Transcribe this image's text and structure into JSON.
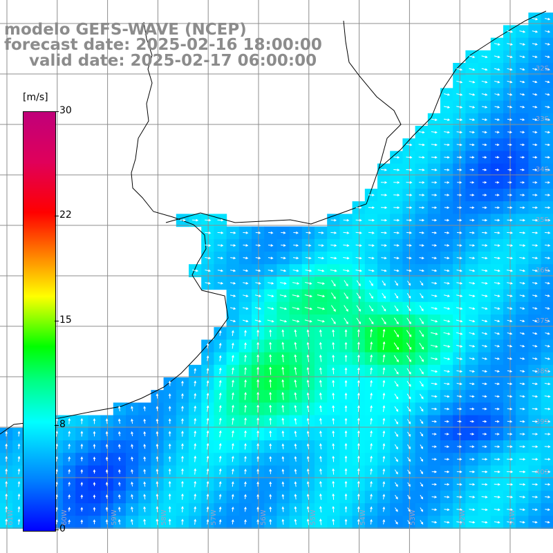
{
  "title": {
    "line1": "modelo GEFS-WAVE (NCEP)",
    "line2": "forecast date: 2025-02-16 18:00:00",
    "line3": "valid date: 2025-02-17 06:00:00"
  },
  "colorbar": {
    "unit": "[m/s]",
    "ticks": [
      "30",
      "22",
      "15",
      "8",
      "0"
    ],
    "min": 0,
    "max": 30,
    "colors": [
      "#0000ff",
      "#0080ff",
      "#00ffff",
      "#00ff80",
      "#00ff00",
      "#80ff00",
      "#ffff00",
      "#ff8000",
      "#ff0000",
      "#e0005a",
      "#c0007a"
    ]
  },
  "grid_labels": {
    "lat": [
      "32S",
      "33S",
      "34S",
      "35S",
      "36S",
      "37S",
      "38S",
      "39S",
      "40S"
    ],
    "lon": [
      "61W",
      "60W",
      "59W",
      "58W",
      "57W",
      "56W",
      "55W",
      "54W",
      "53W",
      "52W",
      "51W"
    ]
  },
  "colors": {
    "land": "#ffffff",
    "coast": "#000000",
    "grid": "#8c8c8c",
    "arrow": "#ffffff",
    "title": "#8c8c8c"
  }
}
